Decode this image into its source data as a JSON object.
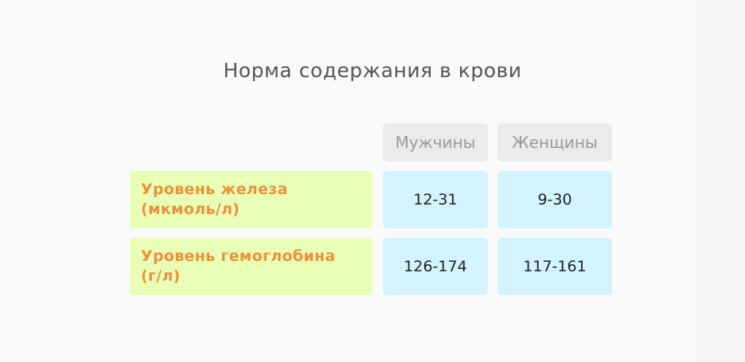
{
  "title": "Норма содержания в крови",
  "table": {
    "columns": [
      "Мужчины",
      "Женщины"
    ],
    "rows": [
      {
        "label": "Уровень железа (мкмоль/л)",
        "values": [
          "12-31",
          "9-30"
        ]
      },
      {
        "label": "Уровень гемоглобина (г/л)",
        "values": [
          "126-174",
          "117-161"
        ]
      }
    ]
  },
  "colors": {
    "header_bg": "#ebebeb",
    "row_label_bg": "#eaffb6",
    "row_label_text": "#e8923e",
    "value_bg": "#d3f3ff"
  }
}
